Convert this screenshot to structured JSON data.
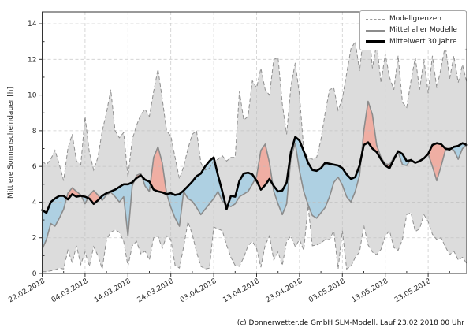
{
  "caption": "(c) Donnerwetter.de GmbH SLM-Modell, Lauf 23.02.2018 00 Uhr",
  "legend": {
    "items": [
      {
        "label": "Modellgrenzen"
      },
      {
        "label": "Mittel aller Modelle"
      },
      {
        "label": "Mittelwert 30 Jahre"
      }
    ]
  },
  "colors": {
    "band_fill": "#dcdcdc",
    "band_edge": "#8f8f8f",
    "model_mean_line": "#8c8c8c",
    "climate_mean_line": "#000000",
    "fill_above_mean": "#f1a89c",
    "fill_below_mean": "#a8cee2",
    "grid": "#bdbdbd",
    "frame": "#333333",
    "tick_text": "#262626"
  },
  "chart_data": {
    "type": "line",
    "title": "",
    "xlabel": "",
    "ylabel": "Mittlere Sonnenscheindauer [h]",
    "grid": true,
    "legend_position": "upper right",
    "ylim": [
      0,
      14.7
    ],
    "y_ticks": [
      0,
      2,
      4,
      6,
      8,
      10,
      12,
      14
    ],
    "x_start_date": "22.02.2018",
    "x_tick_days": [
      0,
      10,
      20,
      30,
      40,
      50,
      60,
      70,
      80,
      90
    ],
    "x_tick_labels": [
      "22.02.2018",
      "04.03.2018",
      "14.03.2018",
      "24.03.2018",
      "03.04.2018",
      "13.04.2018",
      "23.04.2018",
      "03.05.2018",
      "13.05.2018",
      "23.05.2018"
    ],
    "series": [
      {
        "name": "Modellgrenzen oben",
        "style": "dashed-gray",
        "values": [
          6.3,
          6.1,
          6.4,
          6.9,
          6.1,
          5.2,
          7.0,
          7.8,
          6.3,
          6.1,
          8.8,
          6.8,
          5.8,
          6.5,
          8.0,
          9.0,
          10.3,
          8.0,
          7.6,
          7.9,
          5.4,
          7.5,
          8.3,
          8.9,
          9.2,
          8.8,
          10.2,
          11.45,
          9.8,
          8.0,
          7.7,
          6.5,
          5.3,
          6.0,
          7.0,
          7.8,
          8.0,
          6.2,
          5.8,
          5.9,
          6.3,
          6.4,
          6.6,
          6.3,
          6.5,
          6.5,
          10.2,
          8.6,
          8.8,
          10.8,
          10.4,
          11.5,
          10.3,
          10.0,
          12.0,
          12.1,
          9.5,
          7.8,
          10.5,
          11.8,
          10.0,
          6.9,
          6.5,
          6.4,
          6.5,
          7.5,
          9.0,
          10.3,
          10.4,
          9.15,
          9.8,
          11.2,
          12.6,
          13.0,
          11.35,
          13.5,
          14.2,
          11.5,
          12.9,
          10.7,
          12.3,
          11.0,
          10.3,
          12.2,
          9.6,
          9.3,
          10.8,
          12.1,
          10.3,
          12.0,
          10.1,
          12.2,
          10.4,
          11.5,
          12.8,
          10.9,
          12.2,
          10.7,
          11.7,
          10.7
        ]
      },
      {
        "name": "Modellgrenzen unten",
        "style": "dashed-gray",
        "values": [
          0.1,
          0.1,
          0.15,
          0.2,
          0.3,
          0.25,
          1.3,
          0.6,
          1.55,
          0.5,
          1.2,
          0.4,
          1.5,
          1.0,
          0.25,
          1.9,
          2.3,
          2.45,
          2.3,
          1.8,
          0.4,
          1.55,
          1.8,
          1.1,
          1.25,
          0.75,
          2.0,
          2.1,
          1.4,
          2.1,
          1.9,
          0.45,
          0.3,
          1.5,
          2.9,
          2.2,
          1.2,
          0.4,
          0.25,
          0.3,
          2.6,
          2.5,
          2.4,
          1.6,
          0.9,
          0.45,
          0.4,
          0.9,
          1.55,
          1.8,
          1.4,
          0.35,
          1.6,
          2.1,
          0.75,
          1.2,
          0.45,
          1.8,
          2.1,
          1.5,
          1.9,
          1.3,
          3.8,
          1.55,
          1.6,
          1.7,
          1.9,
          1.9,
          2.4,
          0.25,
          2.4,
          0.25,
          0.4,
          0.9,
          1.2,
          2.7,
          1.6,
          1.2,
          1.05,
          1.35,
          2.1,
          2.4,
          1.45,
          1.3,
          1.9,
          3.3,
          3.4,
          2.35,
          2.5,
          3.3,
          2.9,
          2.2,
          1.9,
          2.0,
          1.5,
          1.05,
          1.25,
          0.75,
          0.9,
          0.55
        ]
      },
      {
        "name": "Mittel aller Modelle",
        "style": "solid-gray",
        "values": [
          1.35,
          1.9,
          2.8,
          2.65,
          3.1,
          3.6,
          4.5,
          4.8,
          4.6,
          4.4,
          3.9,
          4.4,
          4.65,
          4.4,
          4.1,
          4.4,
          4.55,
          4.3,
          4.0,
          4.3,
          2.1,
          4.9,
          5.5,
          5.6,
          4.9,
          4.6,
          6.5,
          7.1,
          6.2,
          4.5,
          3.7,
          3.1,
          2.65,
          4.6,
          4.2,
          4.05,
          3.7,
          3.3,
          3.6,
          3.9,
          4.2,
          4.6,
          4.05,
          3.85,
          3.75,
          3.9,
          4.3,
          4.45,
          4.6,
          5.0,
          5.45,
          6.9,
          7.25,
          6.2,
          4.6,
          3.9,
          3.3,
          3.9,
          6.5,
          7.3,
          5.75,
          4.6,
          3.85,
          3.25,
          3.1,
          3.4,
          3.7,
          4.3,
          5.1,
          5.4,
          4.95,
          4.3,
          4.0,
          4.6,
          5.5,
          8.0,
          9.65,
          8.9,
          7.2,
          6.5,
          6.15,
          6.1,
          6.5,
          6.8,
          6.1,
          6.05,
          6.4,
          6.2,
          6.25,
          6.45,
          6.7,
          6.0,
          5.2,
          6.0,
          6.9,
          7.05,
          6.9,
          6.4,
          7.0,
          7.2
        ]
      },
      {
        "name": "Mittelwert 30 Jahre",
        "style": "solid-black-thick",
        "values": [
          3.55,
          3.4,
          4.0,
          4.2,
          4.35,
          4.35,
          4.15,
          4.45,
          4.3,
          4.35,
          4.3,
          4.2,
          3.9,
          4.1,
          4.35,
          4.5,
          4.6,
          4.7,
          4.85,
          5.0,
          5.0,
          5.1,
          5.35,
          5.5,
          5.25,
          5.15,
          4.7,
          4.6,
          4.55,
          4.45,
          4.5,
          4.4,
          4.45,
          4.65,
          4.9,
          5.15,
          5.45,
          5.6,
          6.0,
          6.3,
          6.5,
          5.5,
          4.6,
          3.6,
          4.35,
          4.3,
          5.2,
          5.6,
          5.65,
          5.55,
          5.2,
          4.7,
          4.95,
          5.3,
          4.9,
          4.6,
          4.65,
          5.1,
          6.8,
          7.65,
          7.45,
          6.85,
          6.2,
          5.8,
          5.75,
          5.9,
          6.2,
          6.15,
          6.1,
          6.05,
          5.9,
          5.55,
          5.3,
          5.4,
          6.05,
          7.2,
          7.35,
          7.0,
          6.8,
          6.4,
          6.05,
          5.9,
          6.4,
          6.85,
          6.7,
          6.3,
          6.35,
          6.2,
          6.3,
          6.45,
          6.7,
          7.2,
          7.3,
          7.25,
          7.0,
          6.95,
          7.1,
          7.15,
          7.3,
          7.2
        ]
      }
    ]
  }
}
